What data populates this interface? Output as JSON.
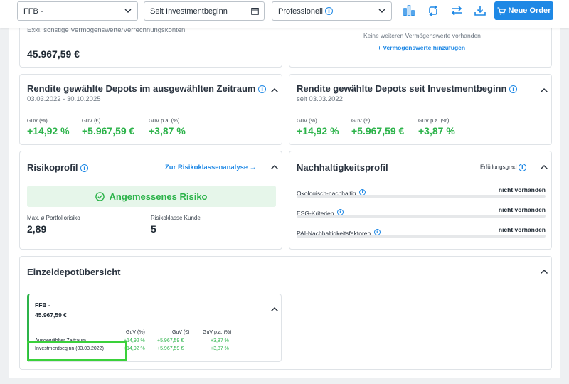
{
  "toolbar": {
    "depot_select": "FFB -",
    "period_select": "Seit Investmentbeginn",
    "view_select": "Professionell",
    "order_button": "Neue Order"
  },
  "assets_left": {
    "partial_label": "Exkl. sonstige Vermögenswerte/Verrechnungskonten",
    "total": "45.967,59 €"
  },
  "assets_right": {
    "empty_text": "Keine weiteren Vermögenswerte vorhanden",
    "add_link": "Vermögenswerte hinzufügen"
  },
  "return_period": {
    "title": "Rendite gewählte Depots im ausgewählten Zeitraum",
    "range": "03.03.2022 - 30.10.2025",
    "labels": [
      "GuV (%)",
      "GuV (€)",
      "GuV p.a. (%)"
    ],
    "values": [
      "+14,92 %",
      "+5.967,59 €",
      "+3,87 %"
    ]
  },
  "return_start": {
    "title": "Rendite gewählte Depots seit Investmentbeginn",
    "since": "seit 03.03.2022",
    "labels": [
      "GuV (%)",
      "GuV (€)",
      "GuV p.a. (%)"
    ],
    "values": [
      "+14,92 %",
      "+5.967,59 €",
      "+3,87 %"
    ]
  },
  "risk": {
    "title": "Risikoprofil",
    "link": "Zur Risikoklassenanalyse →",
    "banner": "Angemessenes Risiko",
    "max_label": "Max. ø Portfoliorisiko",
    "max_value": "2,89",
    "class_label": "Risikoklasse Kunde",
    "class_value": "5"
  },
  "sustainability": {
    "title": "Nachhaltigkeitsprofil",
    "fulfillment": "Erfüllungsgrad",
    "rows": [
      {
        "label": "Ökologisch-nachhaltig",
        "value": "nicht vorhanden"
      },
      {
        "label": "ESG-Kriterien",
        "value": "nicht vorhanden"
      },
      {
        "label": "PAI-Nachhaltigkeitsfaktoren",
        "value": "nicht vorhanden"
      }
    ]
  },
  "single_depot": {
    "title": "Einzeldepotübersicht",
    "depot_name": "FFB -",
    "depot_value": "45.967,59 €",
    "headers": [
      "GuV (%)",
      "GuV (€)",
      "GuV p.a. (%)"
    ],
    "rows": [
      {
        "label": "Ausgewählter Zeitraum",
        "values": [
          "+14,92 %",
          "+5.967,59 €",
          "+3,87 %"
        ]
      },
      {
        "label": "Investmentbeginn (03.03.2022)",
        "values": [
          "+14,92 %",
          "+5.967,59 €",
          "+3,87 %"
        ]
      }
    ]
  },
  "colors": {
    "accent": "#1e88e5",
    "positive": "#2cb34a",
    "highlight": "#3ad13a"
  }
}
